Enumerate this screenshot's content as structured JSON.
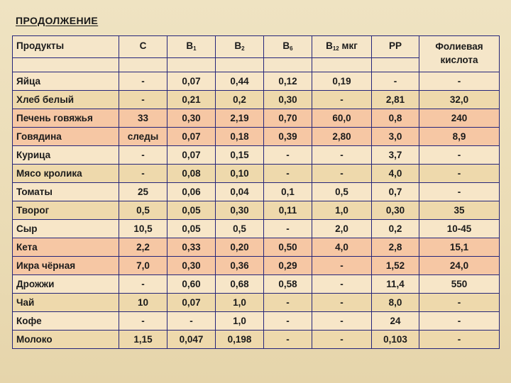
{
  "slide": {
    "title": "ПРОДОЛЖЕНИЕ"
  },
  "table": {
    "headers": {
      "product": "Продукты",
      "c": "C",
      "b1": {
        "base": "В",
        "sub": "1"
      },
      "b2": {
        "base": "В",
        "sub": "2"
      },
      "b6": {
        "base": "В",
        "sub": "6"
      },
      "b12": {
        "base": "В",
        "sub": "12",
        "suffix": " мкг"
      },
      "pp": "PP",
      "folate_line1": "Фолиевая",
      "folate_line2": "кислота"
    },
    "rows": [
      {
        "name": "Яйца",
        "c": "-",
        "b1": "0,07",
        "b2": "0,44",
        "b6": "0,12",
        "b12": "0,19",
        "pp": "-",
        "folate": "-",
        "style": "even"
      },
      {
        "name": "Хлеб белый",
        "c": "-",
        "b1": "0,21",
        "b2": "0,2",
        "b6": "0,30",
        "b12": "-",
        "pp": "2,81",
        "folate": "32,0",
        "style": "odd"
      },
      {
        "name": "Печень говяжья",
        "c": "33",
        "b1": "0,30",
        "b2": "2,19",
        "b6": "0,70",
        "b12": "60,0",
        "pp": "0,8",
        "folate": "240",
        "style": "hl"
      },
      {
        "name": "Говядина",
        "c": "следы",
        "b1": "0,07",
        "b2": "0,18",
        "b6": "0,39",
        "b12": "2,80",
        "pp": "3,0",
        "folate": "8,9",
        "style": "hl"
      },
      {
        "name": "Курица",
        "c": "-",
        "b1": "0,07",
        "b2": "0,15",
        "b6": "-",
        "b12": "-",
        "pp": "3,7",
        "folate": "-",
        "style": "even"
      },
      {
        "name": "Мясо кролика",
        "c": "-",
        "b1": "0,08",
        "b2": "0,10",
        "b6": "-",
        "b12": "-",
        "pp": "4,0",
        "folate": "-",
        "style": "odd"
      },
      {
        "name": "Томаты",
        "c": "25",
        "b1": "0,06",
        "b2": "0,04",
        "b6": "0,1",
        "b12": "0,5",
        "pp": "0,7",
        "folate": "-",
        "style": "even"
      },
      {
        "name": "Творог",
        "c": "0,5",
        "b1": "0,05",
        "b2": "0,30",
        "b6": "0,11",
        "b12": "1,0",
        "pp": "0,30",
        "folate": "35",
        "style": "odd"
      },
      {
        "name": "Сыр",
        "c": "10,5",
        "b1": "0,05",
        "b2": "0,5",
        "b6": "-",
        "b12": "2,0",
        "pp": "0,2",
        "folate": "10-45",
        "style": "even"
      },
      {
        "name": "Кета",
        "c": "2,2",
        "b1": "0,33",
        "b2": "0,20",
        "b6": "0,50",
        "b12": "4,0",
        "pp": "2,8",
        "folate": "15,1",
        "style": "hl"
      },
      {
        "name": "Икра чёрная",
        "c": "7,0",
        "b1": "0,30",
        "b2": "0,36",
        "b6": "0,29",
        "b12": "-",
        "pp": "1,52",
        "folate": "24,0",
        "style": "hl"
      },
      {
        "name": "Дрожжи",
        "c": "-",
        "b1": "0,60",
        "b2": "0,68",
        "b6": "0,58",
        "b12": "-",
        "pp": "11,4",
        "folate": "550",
        "style": "even"
      },
      {
        "name": "Чай",
        "c": "10",
        "b1": "0,07",
        "b2": "1,0",
        "b6": "-",
        "b12": "-",
        "pp": "8,0",
        "folate": "-",
        "style": "odd"
      },
      {
        "name": "Кофе",
        "c": "-",
        "b1": "-",
        "b2": "1,0",
        "b6": "-",
        "b12": "-",
        "pp": "24",
        "folate": "-",
        "style": "even"
      },
      {
        "name": "Молоко",
        "c": "1,15",
        "b1": "0,047",
        "b2": "0,198",
        "b6": "-",
        "b12": "-",
        "pp": "0,103",
        "folate": "-",
        "style": "odd"
      }
    ]
  }
}
